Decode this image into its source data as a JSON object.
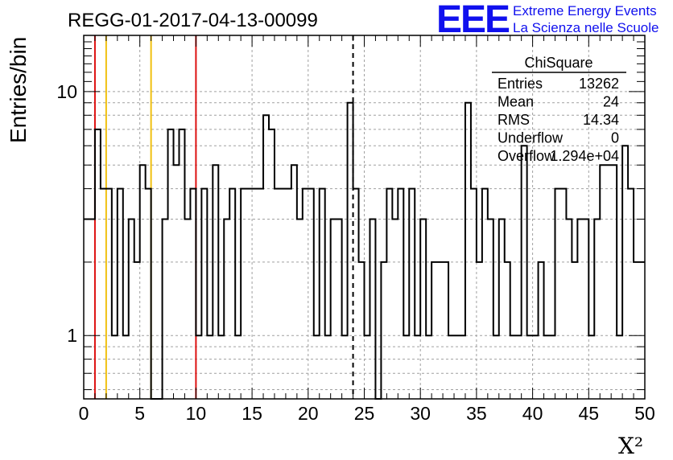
{
  "chart_data": {
    "type": "histogram",
    "title": "REGG-01-2017-04-13-00099",
    "xlabel": "X²",
    "ylabel": "Entries/bin",
    "xlim": [
      0,
      50
    ],
    "ylim": [
      0.55,
      17
    ],
    "yscale": "log",
    "grid": true,
    "bin_width": 0.5,
    "x_ticks": [
      "0",
      "5",
      "10",
      "15",
      "20",
      "25",
      "30",
      "35",
      "40",
      "45",
      "50"
    ],
    "y_ticks": [
      "1",
      "10"
    ],
    "values": [
      3,
      3,
      7,
      4,
      4,
      1,
      4,
      1,
      3,
      2,
      5,
      4,
      0,
      0,
      3,
      7,
      5,
      7,
      3,
      4,
      1,
      4,
      1,
      5,
      1,
      3,
      4,
      1,
      4,
      4,
      4,
      4,
      8,
      7,
      4,
      4,
      4,
      5,
      3,
      4,
      4,
      1,
      4,
      1,
      3,
      3,
      1,
      9,
      4,
      2,
      1,
      3,
      0,
      2,
      4,
      3,
      4,
      1,
      4,
      1,
      3,
      1,
      2,
      2,
      2,
      1,
      1,
      1,
      9,
      4,
      2,
      4,
      3,
      1,
      3,
      2,
      1,
      1,
      6,
      1,
      1,
      2,
      1,
      1,
      4,
      4,
      3,
      2,
      3,
      3,
      1,
      3,
      5,
      5,
      5,
      1,
      6,
      4,
      2,
      2
    ],
    "vlines_red": [
      1,
      10
    ],
    "vlines_yellow": [
      2,
      6
    ],
    "vline_dashed": 24,
    "colors": {
      "histogram": "#000000",
      "red_line": "#dd1111",
      "yellow_line": "#f0c010",
      "grid": "#a0a0a0",
      "logo": "#1010ee"
    },
    "stats_box": {
      "title": "ChiSquare",
      "rows": [
        {
          "label": "Entries",
          "value": "13262"
        },
        {
          "label": "Mean",
          "value": "24"
        },
        {
          "label": "RMS",
          "value": "14.34"
        },
        {
          "label": "Underflow",
          "value": "0"
        },
        {
          "label": "Overflow",
          "value": "1.294e+04"
        }
      ]
    }
  },
  "logo": {
    "mark": "EEE",
    "line1": "Extreme Energy Events",
    "line2": "La Scienza nelle Scuole"
  }
}
